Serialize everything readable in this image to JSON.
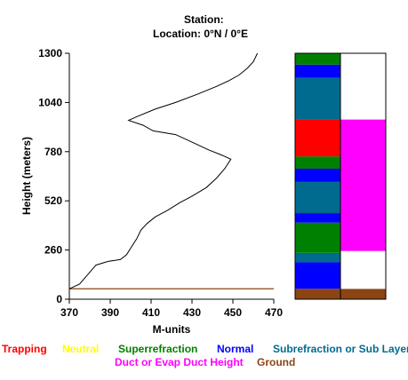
{
  "header": {
    "station_label": "Station:",
    "location_label": "Location:   0°N /   0°E"
  },
  "chart_data": {
    "type": "line",
    "title": "",
    "xlabel": "M-units",
    "ylabel": "Height (meters)",
    "xlim": [
      370,
      470
    ],
    "ylim": [
      0,
      1300
    ],
    "x_ticks": [
      "370",
      "390",
      "410",
      "430",
      "450",
      "470"
    ],
    "y_ticks": [
      "0",
      "260",
      "520",
      "780",
      "1040",
      "1300"
    ],
    "series": [
      {
        "color": "#000000",
        "points": [
          [
            370,
            55
          ],
          [
            375,
            80
          ],
          [
            379,
            130
          ],
          [
            383,
            180
          ],
          [
            389,
            200
          ],
          [
            395,
            210
          ],
          [
            398,
            235
          ],
          [
            400,
            270
          ],
          [
            403,
            320
          ],
          [
            405,
            365
          ],
          [
            408,
            400
          ],
          [
            412,
            435
          ],
          [
            418,
            470
          ],
          [
            424,
            510
          ],
          [
            430,
            545
          ],
          [
            437,
            590
          ],
          [
            442,
            640
          ],
          [
            446,
            690
          ],
          [
            449,
            740
          ],
          [
            445,
            760
          ],
          [
            438,
            790
          ],
          [
            430,
            830
          ],
          [
            422,
            870
          ],
          [
            411,
            890
          ],
          [
            406,
            920
          ],
          [
            399,
            945
          ],
          [
            403,
            965
          ],
          [
            412,
            1005
          ],
          [
            422,
            1040
          ],
          [
            433,
            1085
          ],
          [
            442,
            1125
          ],
          [
            448,
            1155
          ],
          [
            453,
            1185
          ],
          [
            457,
            1220
          ],
          [
            460,
            1255
          ],
          [
            462,
            1300
          ]
        ]
      }
    ],
    "reference_lines": [
      {
        "y": 55,
        "color": "#8b4513"
      }
    ],
    "layer_bars": {
      "left": [
        {
          "from": 0,
          "to": 55,
          "color": "#8b4513"
        },
        {
          "from": 55,
          "to": 195,
          "color": "#0000ff"
        },
        {
          "from": 195,
          "to": 245,
          "color": "#006b8f"
        },
        {
          "from": 245,
          "to": 405,
          "color": "#008000"
        },
        {
          "from": 405,
          "to": 455,
          "color": "#0000ff"
        },
        {
          "from": 455,
          "to": 620,
          "color": "#006b8f"
        },
        {
          "from": 620,
          "to": 690,
          "color": "#0000ff"
        },
        {
          "from": 690,
          "to": 755,
          "color": "#008000"
        },
        {
          "from": 755,
          "to": 950,
          "color": "#ff0000"
        },
        {
          "from": 950,
          "to": 1170,
          "color": "#006b8f"
        },
        {
          "from": 1170,
          "to": 1240,
          "color": "#0000ff"
        },
        {
          "from": 1240,
          "to": 1300,
          "color": "#008000"
        }
      ],
      "right": [
        {
          "from": 0,
          "to": 55,
          "color": "#8b4513"
        },
        {
          "from": 55,
          "to": 255,
          "color": "#ffffff"
        },
        {
          "from": 255,
          "to": 950,
          "color": "#ff00ff"
        },
        {
          "from": 950,
          "to": 1300,
          "color": "#ffffff"
        }
      ]
    },
    "legend": [
      {
        "label": "Trapping",
        "color": "#ff0000"
      },
      {
        "label": "Neutral",
        "color": "#ffff00"
      },
      {
        "label": "Superrefraction",
        "color": "#008000"
      },
      {
        "label": "Normal",
        "color": "#0000ff"
      },
      {
        "label": "Subrefraction or Sub Layer",
        "color": "#006b8f"
      },
      {
        "label": "Duct or Evap Duct Height",
        "color": "#ff00ff"
      },
      {
        "label": "Ground",
        "color": "#8b4513"
      }
    ]
  }
}
